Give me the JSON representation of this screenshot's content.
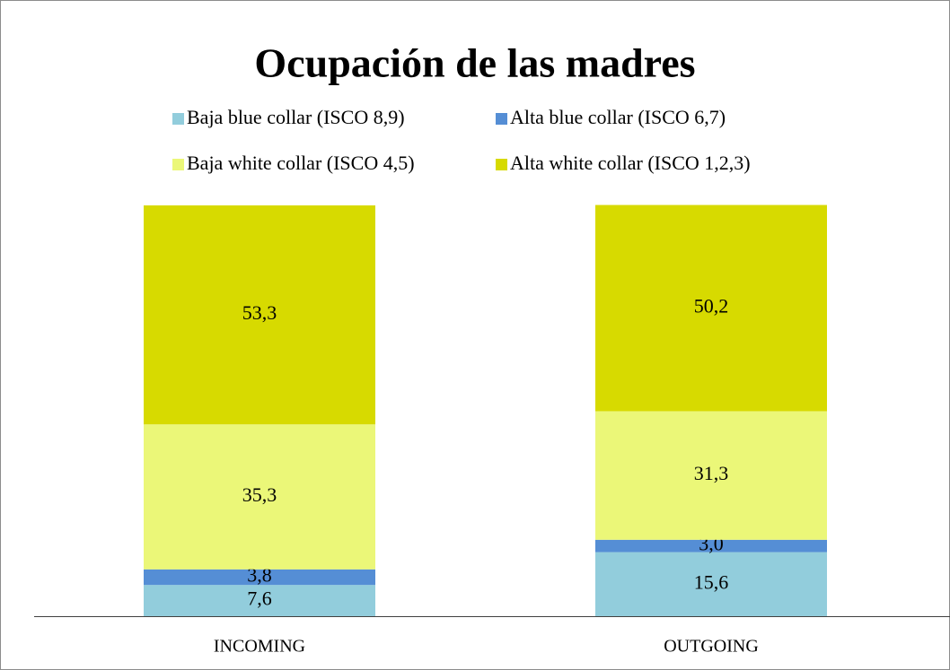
{
  "chart_data": {
    "type": "stacked_bar",
    "title": "Ocupación de las madres",
    "categories": [
      "INCOMING",
      "OUTGOING"
    ],
    "series": [
      {
        "name": "Baja blue collar (ISCO 8,9)",
        "color": "#92cddc",
        "values": [
          7.6,
          15.6
        ],
        "value_labels": [
          "7,6",
          "15,6"
        ]
      },
      {
        "name": "Alta blue collar (ISCO 6,7)",
        "color": "#558ed5",
        "values": [
          3.8,
          3.0
        ],
        "value_labels": [
          "3,8",
          "3,0"
        ]
      },
      {
        "name": "Baja white collar (ISCO 4,5)",
        "color": "#ebf778",
        "values": [
          35.3,
          31.3
        ],
        "value_labels": [
          "35,3",
          "31,3"
        ]
      },
      {
        "name": "Alta white collar (ISCO 1,2,3)",
        "color": "#d7da00",
        "values": [
          53.3,
          50.2
        ],
        "value_labels": [
          "53,3",
          "50,2"
        ]
      }
    ],
    "ylim": [
      0,
      100
    ],
    "legend": "top"
  }
}
